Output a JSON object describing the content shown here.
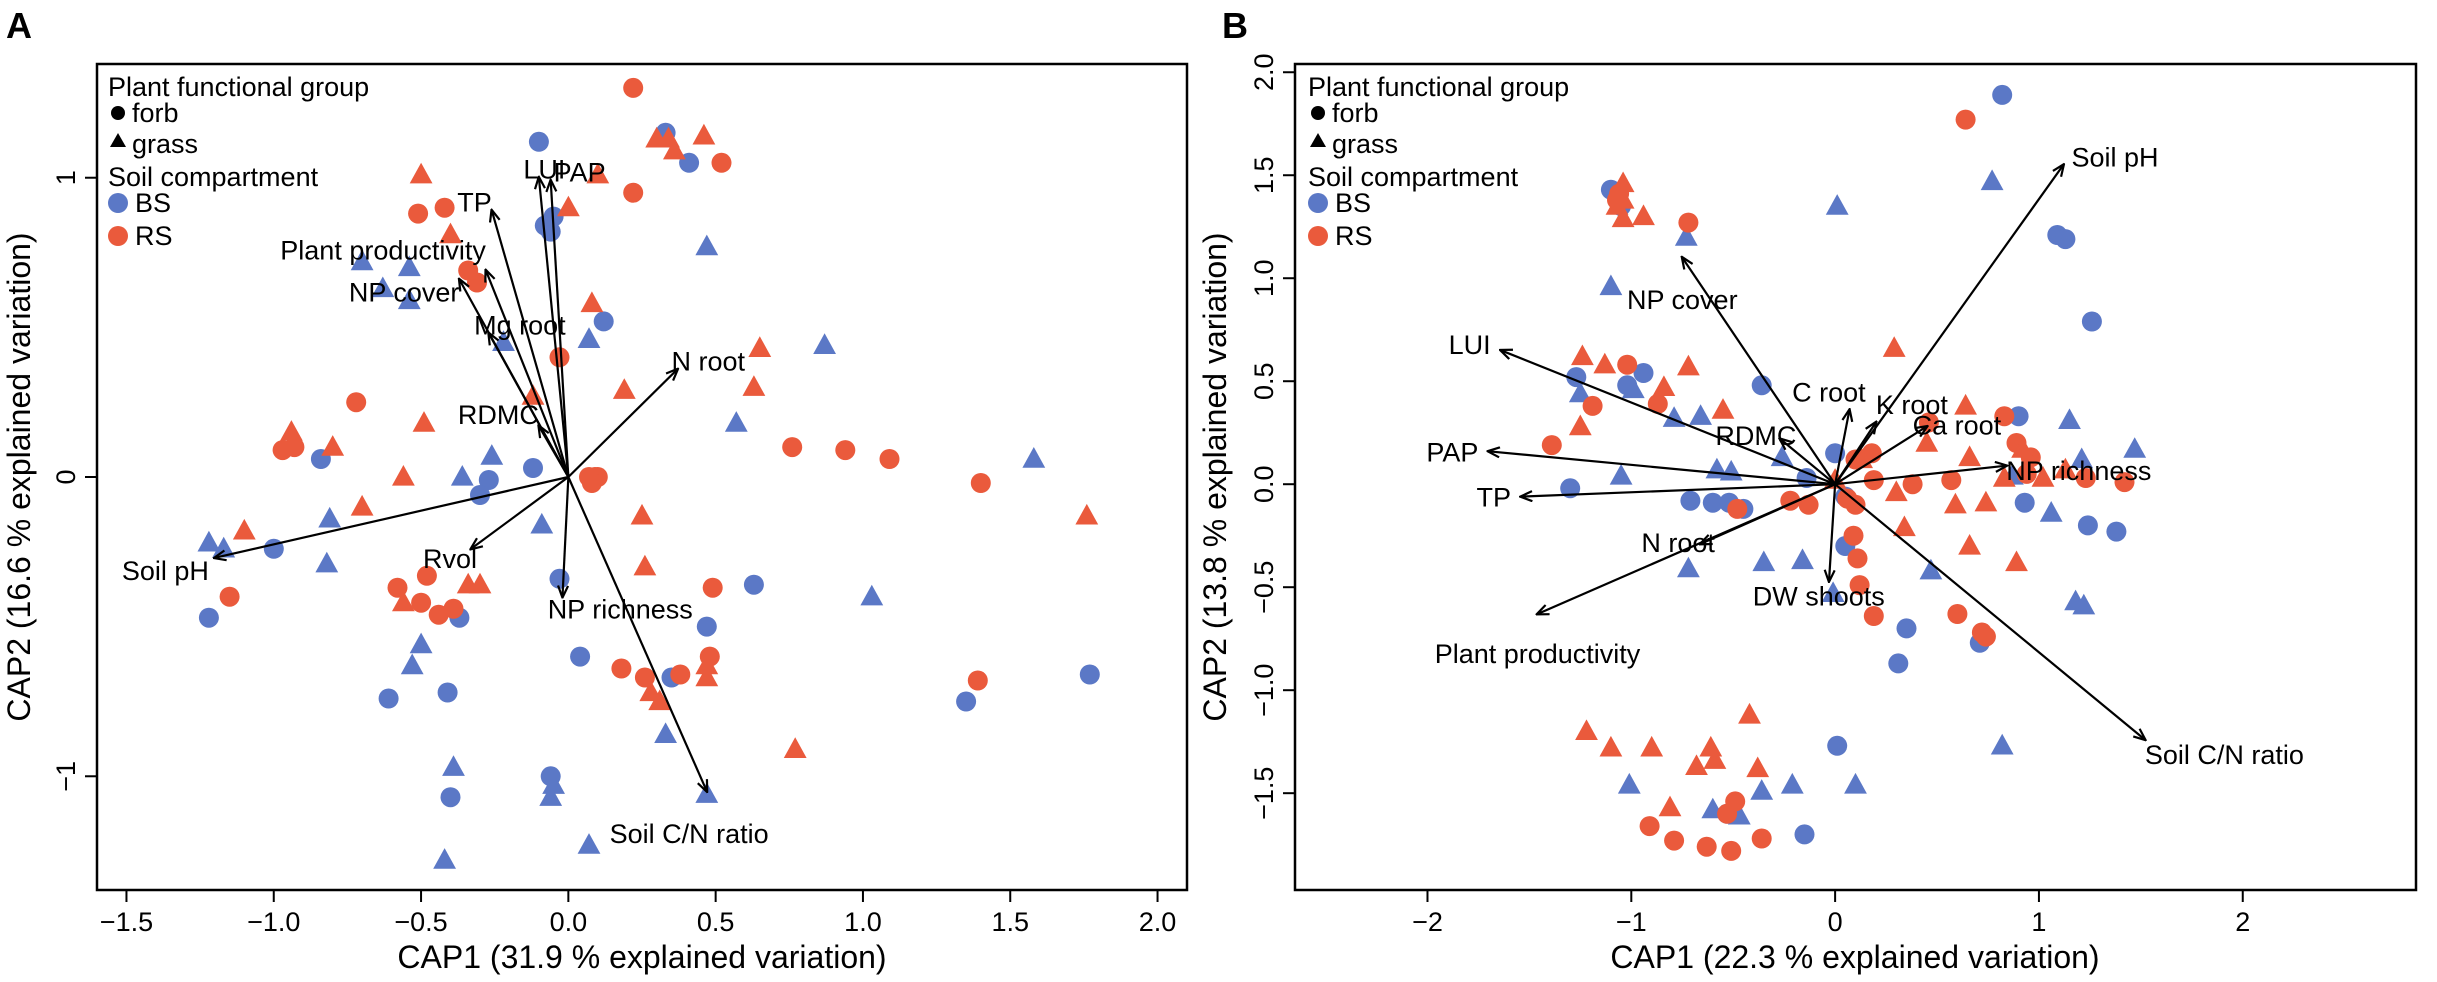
{
  "colors": {
    "BS": "#5B78C6",
    "RS": "#EA5A3C"
  },
  "chart_data": [
    {
      "type": "scatter",
      "panel_label": "A",
      "xlabel": "CAP1 (31.9 % explained variation)",
      "ylabel": "CAP2 (16.6 % explained variation)",
      "xlim": [
        -1.6,
        2.1
      ],
      "ylim": [
        -1.38,
        1.38
      ],
      "xticks": [
        -1.5,
        -1.0,
        -0.5,
        0.0,
        0.5,
        1.0,
        1.5,
        2.0
      ],
      "xtick_labels": [
        "−1.5",
        "−1.0",
        "−0.5",
        "0.0",
        "0.5",
        "1.0",
        "1.5",
        "2.0"
      ],
      "yticks": [
        -1,
        0,
        1
      ],
      "ytick_labels": [
        "−1",
        "0",
        "1"
      ],
      "legend": {
        "position": "top-left",
        "shape_title": "Plant functional group",
        "shape_items": [
          {
            "label": "forb",
            "shape": "circle"
          },
          {
            "label": "grass",
            "shape": "triangle"
          }
        ],
        "color_title": "Soil compartment",
        "color_items": [
          {
            "label": "BS",
            "color": "#5B78C6"
          },
          {
            "label": "RS",
            "color": "#EA5A3C"
          }
        ]
      },
      "vectors": [
        {
          "label": "LUI",
          "x": -0.1,
          "y": 1.0,
          "anchor": "end",
          "dx": 0.09,
          "dy": 0.03
        },
        {
          "label": "PAP",
          "x": -0.06,
          "y": 0.99,
          "anchor": "start",
          "dx": 0.01,
          "dy": 0.03
        },
        {
          "label": "TP",
          "x": -0.26,
          "y": 0.89,
          "anchor": "end",
          "dx": 0.0,
          "dy": 0.03
        },
        {
          "label": "Plant productivity",
          "x": -0.28,
          "y": 0.69,
          "anchor": "end",
          "dx": 0.0,
          "dy": 0.07
        },
        {
          "label": "NP cover",
          "x": -0.37,
          "y": 0.66,
          "anchor": "end",
          "dx": 0.0,
          "dy": -0.04
        },
        {
          "label": "Mg root",
          "x": -0.27,
          "y": 0.48,
          "anchor": "start",
          "dx": -0.05,
          "dy": 0.03
        },
        {
          "label": "N root",
          "x": 0.37,
          "y": 0.36,
          "anchor": "start",
          "dx": -0.02,
          "dy": 0.03
        },
        {
          "label": "RDMC",
          "x": -0.1,
          "y": 0.17,
          "anchor": "end",
          "dx": 0.0,
          "dy": 0.04
        },
        {
          "label": "Soil pH",
          "x": -1.2,
          "y": -0.27,
          "anchor": "end",
          "dx": -0.02,
          "dy": -0.04
        },
        {
          "label": "Rvol",
          "x": -0.33,
          "y": -0.24,
          "anchor": "end",
          "dx": 0.02,
          "dy": -0.03
        },
        {
          "label": "NP richness",
          "x": -0.02,
          "y": -0.4,
          "anchor": "start",
          "dx": -0.05,
          "dy": -0.04
        },
        {
          "label": "Soil C/N ratio",
          "x": 0.47,
          "y": -1.05,
          "anchor": "middle",
          "dx": -0.06,
          "dy": -0.14
        }
      ],
      "series": [
        {
          "name": "BS forb",
          "compartment": "BS",
          "shape": "circle",
          "x": [
            -0.1,
            0.33,
            0.41,
            -0.05,
            -0.08,
            -0.06,
            0.12,
            -0.84,
            -1.0,
            -1.22,
            -0.37,
            -0.27,
            -0.3,
            -0.12,
            -0.03,
            0.63,
            0.47,
            -0.61,
            -0.41,
            -0.4,
            0.04,
            -0.06,
            1.35,
            1.77,
            0.35
          ],
          "y": [
            1.12,
            1.15,
            1.05,
            0.87,
            0.84,
            0.82,
            0.52,
            0.06,
            -0.24,
            -0.47,
            -0.47,
            -0.01,
            -0.06,
            0.03,
            -0.34,
            -0.36,
            -0.5,
            -0.74,
            -0.72,
            -1.07,
            -0.6,
            -1.0,
            -0.75,
            -0.66,
            -0.67
          ]
        },
        {
          "name": "BS grass",
          "compartment": "BS",
          "shape": "triangle",
          "x": [
            -0.54,
            -0.7,
            -0.63,
            -0.22,
            0.07,
            -0.54,
            0.47,
            0.57,
            0.87,
            -0.26,
            -0.36,
            -0.81,
            -0.82,
            -1.22,
            -1.17,
            -0.5,
            -0.53,
            -0.09,
            1.58,
            1.03,
            0.33,
            -0.06,
            -0.39,
            -0.42,
            -0.05,
            0.07,
            0.47
          ],
          "y": [
            0.7,
            0.72,
            0.63,
            0.45,
            0.46,
            0.59,
            0.77,
            0.18,
            0.44,
            0.07,
            0.0,
            -0.14,
            -0.29,
            -0.22,
            -0.24,
            -0.56,
            -0.63,
            -0.16,
            0.06,
            -0.4,
            -0.86,
            -1.07,
            -0.97,
            -1.28,
            -1.03,
            -1.23,
            -1.06
          ]
        },
        {
          "name": "RS forb",
          "compartment": "RS",
          "shape": "circle",
          "x": [
            0.22,
            0.22,
            0.52,
            -0.51,
            -0.42,
            -0.34,
            -0.31,
            -0.72,
            -0.93,
            -0.97,
            0.09,
            0.1,
            -0.48,
            -0.39,
            -0.5,
            -0.58,
            -0.44,
            -1.15,
            -0.03,
            0.07,
            0.08,
            0.18,
            0.26,
            0.38,
            0.48,
            0.76,
            0.94,
            1.09,
            1.4,
            1.39,
            0.49
          ],
          "y": [
            1.3,
            0.95,
            1.05,
            0.88,
            0.9,
            0.69,
            0.65,
            0.25,
            0.1,
            0.09,
            0.0,
            0.0,
            -0.33,
            -0.44,
            -0.42,
            -0.37,
            -0.46,
            -0.4,
            0.4,
            0.0,
            -0.02,
            -0.64,
            -0.67,
            -0.66,
            -0.6,
            0.1,
            0.09,
            0.06,
            -0.02,
            -0.68,
            -0.37
          ]
        },
        {
          "name": "RS grass",
          "compartment": "RS",
          "shape": "triangle",
          "x": [
            0.3,
            0.34,
            0.36,
            0.46,
            0.1,
            -0.5,
            -0.4,
            0.0,
            0.08,
            0.65,
            0.63,
            0.19,
            -0.12,
            -0.8,
            -0.94,
            -0.56,
            -0.49,
            -1.1,
            -0.7,
            -0.34,
            -0.3,
            -0.56,
            0.26,
            0.28,
            0.31,
            0.47,
            0.47,
            0.77,
            1.76,
            0.25
          ],
          "y": [
            1.13,
            1.13,
            1.09,
            1.14,
            1.01,
            1.01,
            0.81,
            0.9,
            0.58,
            0.43,
            0.3,
            0.29,
            0.27,
            0.1,
            0.15,
            0.0,
            0.18,
            -0.18,
            -0.1,
            -0.36,
            -0.36,
            -0.42,
            -0.3,
            -0.72,
            -0.75,
            -0.63,
            -0.67,
            -0.91,
            -0.13,
            -0.13
          ]
        }
      ]
    },
    {
      "type": "scatter",
      "panel_label": "B",
      "xlabel": "CAP1 (22.3 % explained variation)",
      "ylabel": "CAP2 (13.8 % explained variation)",
      "xlim": [
        -2.65,
        2.85
      ],
      "ylim": [
        -1.97,
        2.04
      ],
      "xticks": [
        -2,
        -1,
        0,
        1,
        2
      ],
      "xtick_labels": [
        "−2",
        "−1",
        "0",
        "1",
        "2"
      ],
      "yticks": [
        -1.5,
        -1.0,
        -0.5,
        0.0,
        0.5,
        1.0,
        1.5,
        2.0
      ],
      "ytick_labels": [
        "−1.5",
        "−1.0",
        "−0.5",
        "0.0",
        "0.5",
        "1.0",
        "1.5",
        "2.0"
      ],
      "legend": {
        "position": "top-left",
        "shape_title": "Plant functional group",
        "shape_items": [
          {
            "label": "forb",
            "shape": "circle"
          },
          {
            "label": "grass",
            "shape": "triangle"
          }
        ],
        "color_title": "Soil compartment",
        "color_items": [
          {
            "label": "BS",
            "color": "#5B78C6"
          },
          {
            "label": "RS",
            "color": "#EA5A3C"
          }
        ]
      },
      "vectors": [
        {
          "label": "Soil pH",
          "x": 1.12,
          "y": 1.55,
          "anchor": "start",
          "dx": 0.04,
          "dy": 0.04
        },
        {
          "label": "NP cover",
          "x": -0.75,
          "y": 1.1,
          "anchor": "middle",
          "dx": 0.0,
          "dy": -0.2
        },
        {
          "label": "LUI",
          "x": -1.64,
          "y": 0.65,
          "anchor": "end",
          "dx": -0.05,
          "dy": 0.03
        },
        {
          "label": "C root",
          "x": 0.07,
          "y": 0.36,
          "anchor": "end",
          "dx": 0.08,
          "dy": 0.09
        },
        {
          "label": "K root",
          "x": 0.2,
          "y": 0.3,
          "anchor": "start",
          "dx": 0.0,
          "dy": 0.09
        },
        {
          "label": "Ca root",
          "x": 0.45,
          "y": 0.28,
          "anchor": "start",
          "dx": -0.07,
          "dy": 0.01
        },
        {
          "label": "RDMC",
          "x": -0.27,
          "y": 0.22,
          "anchor": "end",
          "dx": 0.08,
          "dy": 0.02
        },
        {
          "label": "PAP",
          "x": -1.7,
          "y": 0.16,
          "anchor": "end",
          "dx": -0.05,
          "dy": 0.0
        },
        {
          "label": "NP richness",
          "x": 0.84,
          "y": 0.09,
          "anchor": "start",
          "dx": 0.0,
          "dy": -0.02
        },
        {
          "label": "TP",
          "x": -1.54,
          "y": -0.06,
          "anchor": "end",
          "dx": -0.05,
          "dy": 0.0
        },
        {
          "label": "N root",
          "x": -0.66,
          "y": -0.29,
          "anchor": "end",
          "dx": 0.07,
          "dy": 0.01
        },
        {
          "label": "DW shoots",
          "x": -0.03,
          "y": -0.47,
          "anchor": "middle",
          "dx": -0.05,
          "dy": -0.07
        },
        {
          "label": "Plant productivity",
          "x": -1.46,
          "y": -0.63,
          "anchor": "middle",
          "dx": 0.0,
          "dy": -0.19
        },
        {
          "label": "Soil C/N ratio",
          "x": 1.52,
          "y": -1.24,
          "anchor": "start",
          "dx": 0.0,
          "dy": -0.07
        }
      ],
      "series": [
        {
          "name": "BS forb",
          "compartment": "BS",
          "shape": "circle",
          "x": [
            0.82,
            -1.1,
            1.09,
            1.13,
            1.26,
            -1.05,
            -0.94,
            -1.02,
            -1.27,
            -1.3,
            -0.6,
            -0.14,
            0.0,
            0.05,
            -0.36,
            -0.71,
            -0.52,
            -0.45,
            0.9,
            0.93,
            1.24,
            1.38,
            0.05,
            0.35,
            0.71,
            0.31,
            0.01,
            -0.15,
            -0.53
          ],
          "y": [
            1.89,
            1.43,
            1.21,
            1.19,
            0.79,
            1.35,
            0.54,
            0.48,
            0.52,
            -0.02,
            -0.09,
            0.03,
            0.15,
            -0.06,
            0.48,
            -0.08,
            -0.09,
            -0.12,
            0.33,
            -0.09,
            -0.2,
            -0.23,
            -0.3,
            -0.7,
            -0.77,
            -0.87,
            -1.27,
            -1.7,
            -1.6
          ]
        },
        {
          "name": "BS grass",
          "compartment": "BS",
          "shape": "triangle",
          "x": [
            0.01,
            0.77,
            -0.73,
            -1.1,
            -1.25,
            -0.99,
            -0.79,
            -0.66,
            -0.51,
            -0.58,
            -1.05,
            -0.26,
            -0.72,
            -0.16,
            -0.35,
            -0.01,
            0.47,
            0.87,
            1.15,
            1.21,
            1.06,
            1.18,
            1.22,
            1.47,
            0.82,
            0.1,
            -0.21,
            -0.36,
            -0.47,
            -0.6,
            -1.01
          ],
          "y": [
            1.35,
            1.47,
            1.2,
            0.96,
            0.44,
            0.46,
            0.32,
            0.33,
            0.06,
            0.07,
            0.04,
            0.13,
            -0.41,
            -0.37,
            -0.38,
            -0.53,
            -0.42,
            0.04,
            0.31,
            0.12,
            -0.14,
            -0.57,
            -0.59,
            0.17,
            -1.27,
            -1.46,
            -1.46,
            -1.49,
            -1.61,
            -1.58,
            -1.46
          ]
        },
        {
          "name": "RS forb",
          "compartment": "RS",
          "shape": "circle",
          "x": [
            0.64,
            -0.72,
            -1.06,
            -1.07,
            -1.19,
            -0.87,
            -1.02,
            -1.39,
            -0.48,
            -0.13,
            -0.22,
            0.1,
            0.46,
            0.83,
            0.89,
            0.96,
            0.94,
            1.23,
            1.42,
            0.57,
            0.38,
            0.19,
            0.06,
            0.11,
            0.09,
            0.12,
            0.19,
            0.6,
            0.72,
            0.74,
            -0.49,
            -0.53,
            -0.36,
            -0.51,
            -0.63,
            -0.79,
            -0.91,
            0.18,
            0.1
          ],
          "y": [
            1.77,
            1.27,
            1.41,
            1.38,
            0.38,
            0.39,
            0.58,
            0.19,
            -0.12,
            -0.1,
            -0.08,
            -0.1,
            0.3,
            0.33,
            0.2,
            0.13,
            0.05,
            0.03,
            0.01,
            0.02,
            0.0,
            0.02,
            -0.07,
            -0.36,
            -0.25,
            -0.49,
            -0.64,
            -0.63,
            -0.72,
            -0.74,
            -1.54,
            -1.6,
            -1.72,
            -1.78,
            -1.76,
            -1.73,
            -1.66,
            0.15,
            0.12
          ]
        },
        {
          "name": "RS grass",
          "compartment": "RS",
          "shape": "triangle",
          "x": [
            0.29,
            0.92,
            -1.04,
            -1.07,
            -1.04,
            -1.04,
            -0.94,
            -1.24,
            -1.13,
            -1.25,
            -0.72,
            -0.84,
            -0.55,
            0.13,
            0.0,
            0.3,
            0.45,
            0.64,
            0.66,
            0.83,
            1.13,
            1.02,
            0.74,
            0.59,
            0.34,
            0.66,
            0.89,
            -0.42,
            -0.68,
            -0.81,
            -0.9,
            -1.1,
            -1.22,
            -0.61,
            -0.59,
            -0.38
          ],
          "y": [
            0.66,
            0.17,
            1.46,
            1.35,
            1.38,
            1.29,
            1.3,
            0.62,
            0.58,
            0.28,
            0.57,
            0.47,
            0.36,
            0.12,
            0.02,
            -0.04,
            0.2,
            0.38,
            0.13,
            0.03,
            0.07,
            0.03,
            -0.09,
            -0.1,
            -0.21,
            -0.3,
            -0.38,
            -1.12,
            -1.37,
            -1.57,
            -1.28,
            -1.28,
            -1.2,
            -1.28,
            -1.34,
            -1.38
          ]
        }
      ]
    }
  ]
}
